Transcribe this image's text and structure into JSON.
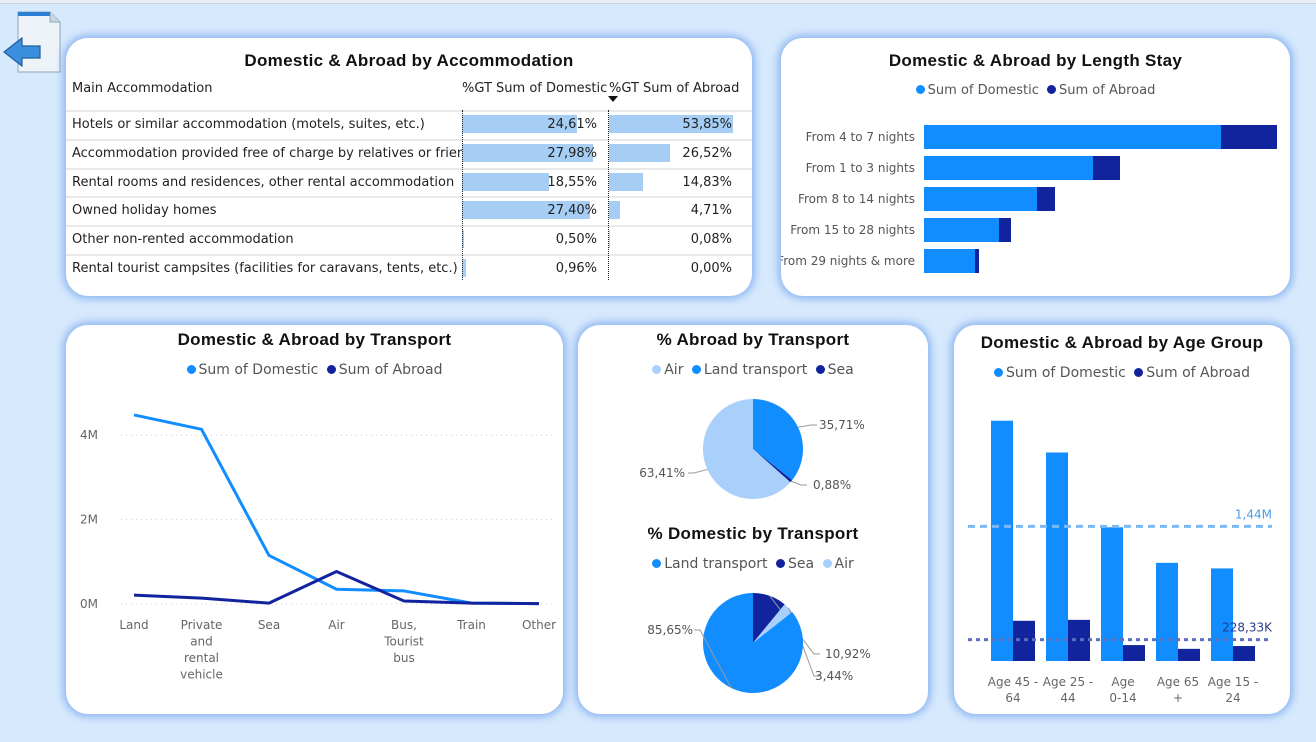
{
  "colors": {
    "domestic": "#118dff",
    "abroad": "#12239e",
    "air": "#a8d0fb",
    "land": "#118dff",
    "sea": "#12239e",
    "table_bar": "#a6cef5"
  },
  "nav": {
    "back_icon": "back-arrow-icon"
  },
  "accommodation": {
    "title": "Domestic & Abroad by Accommodation",
    "col_main": "Main Accommodation",
    "col_domestic": "%GT Sum of Domestic",
    "col_abroad": "%GT Sum of Abroad",
    "rows": [
      {
        "name": "Hotels or similar accommodation (motels, suites, etc.)",
        "domestic": "24,61%",
        "abroad": "53,85%",
        "d": 24.61,
        "a": 53.85
      },
      {
        "name": "Accommodation provided free of charge by relatives or friends",
        "domestic": "27,98%",
        "abroad": "26,52%",
        "d": 27.98,
        "a": 26.52
      },
      {
        "name": "Rental rooms and residences, other rental accommodation",
        "domestic": "18,55%",
        "abroad": "14,83%",
        "d": 18.55,
        "a": 14.83
      },
      {
        "name": "Owned holiday homes",
        "domestic": "27,40%",
        "abroad": "4,71%",
        "d": 27.4,
        "a": 4.71
      },
      {
        "name": "Other non-rented accommodation",
        "domestic": "0,50%",
        "abroad": "0,08%",
        "d": 0.5,
        "a": 0.08
      },
      {
        "name": "Rental tourist campsites (facilities for caravans, tents, etc.)",
        "domestic": "0,96%",
        "abroad": "0,00%",
        "d": 0.96,
        "a": 0.0
      }
    ]
  },
  "length_stay": {
    "title": "Domestic & Abroad by Length Stay",
    "legend": [
      "Sum of Domestic",
      "Sum of Abroad"
    ]
  },
  "transport_line": {
    "title": "Domestic & Abroad by Transport",
    "legend": [
      "Sum of Domestic",
      "Sum of Abroad"
    ]
  },
  "abroad_pie": {
    "title": "% Abroad by Transport",
    "legend": [
      "Air",
      "Land transport",
      "Sea"
    ]
  },
  "domestic_pie": {
    "title": "% Domestic by Transport",
    "legend": [
      "Land transport",
      "Sea",
      "Air"
    ]
  },
  "age_group": {
    "title": "Domestic & Abroad by Age Group",
    "legend": [
      "Sum of Domestic",
      "Sum of Abroad"
    ]
  },
  "chart_data": [
    {
      "type": "bar",
      "orientation": "horizontal",
      "stacked": true,
      "title": "Domestic & Abroad by Length Stay",
      "categories": [
        "From 4 to 7 nights",
        "From 1 to 3 nights",
        "From 8 to 14 nights",
        "From 15 to 28 nights",
        "From 29 nights & more"
      ],
      "series": [
        {
          "name": "Sum of Domestic",
          "values": [
            297,
            169,
            113,
            75,
            51
          ]
        },
        {
          "name": "Sum of Abroad",
          "values": [
            56,
            27,
            18,
            12,
            4
          ]
        }
      ]
    },
    {
      "type": "line",
      "title": "Domestic & Abroad by Transport",
      "categories": [
        "Land",
        "Private and rental vehicle",
        "Sea",
        "Air",
        "Bus, Tourist bus",
        "Train",
        "Other"
      ],
      "category_lines": [
        [
          "Land"
        ],
        [
          "Private",
          "and",
          "rental",
          "vehicle"
        ],
        [
          "Sea"
        ],
        [
          "Air"
        ],
        [
          "Bus,",
          "Tourist",
          "bus"
        ],
        [
          "Train"
        ],
        [
          "Other"
        ]
      ],
      "yticks": [
        {
          "v": 0,
          "label": "0M"
        },
        {
          "v": 2000000,
          "label": "2M"
        },
        {
          "v": 4000000,
          "label": "4M"
        }
      ],
      "ylim": [
        0,
        5000000
      ],
      "series": [
        {
          "name": "Sum of Domestic",
          "values": [
            4480000,
            4140000,
            1150000,
            350000,
            310000,
            20000,
            10000
          ]
        },
        {
          "name": "Sum of Abroad",
          "values": [
            210000,
            140000,
            20000,
            770000,
            70000,
            20000,
            10000
          ]
        }
      ]
    },
    {
      "type": "pie",
      "title": "% Abroad by Transport",
      "slices": [
        {
          "name": "Land transport",
          "value": 35.71,
          "label": "35,71%"
        },
        {
          "name": "Sea",
          "value": 0.88,
          "label": "0,88%"
        },
        {
          "name": "Air",
          "value": 63.41,
          "label": "63,41%"
        }
      ]
    },
    {
      "type": "pie",
      "title": "% Domestic by Transport",
      "slices": [
        {
          "name": "Sea",
          "value": 10.92,
          "label": "10,92%"
        },
        {
          "name": "Air",
          "value": 3.44,
          "label": "3,44%"
        },
        {
          "name": "Land transport",
          "value": 85.65,
          "label": "85,65%"
        }
      ]
    },
    {
      "type": "bar",
      "orientation": "vertical",
      "title": "Domestic & Abroad by Age Group",
      "categories": [
        "Age 45 - 64",
        "Age 25 - 44",
        "Age 0-14",
        "Age 65 +",
        "Age 15 - 24"
      ],
      "category_lines": [
        [
          "Age 45 -",
          "64"
        ],
        [
          "Age 25 -",
          "44"
        ],
        [
          "Age",
          "0-14"
        ],
        [
          "Age 65",
          "+"
        ],
        [
          "Age 15 -",
          "24"
        ]
      ],
      "ylim": [
        0,
        3000000
      ],
      "series": [
        {
          "name": "Sum of Domestic",
          "values": [
            2570000,
            2230000,
            1430000,
            1050000,
            990000
          ]
        },
        {
          "name": "Sum of Abroad",
          "values": [
            430000,
            440000,
            170000,
            130000,
            160000
          ]
        }
      ],
      "reference_lines": [
        {
          "value": 1440000,
          "label": "1,44M"
        },
        {
          "value": 228330,
          "label": "228,33K"
        }
      ]
    }
  ]
}
